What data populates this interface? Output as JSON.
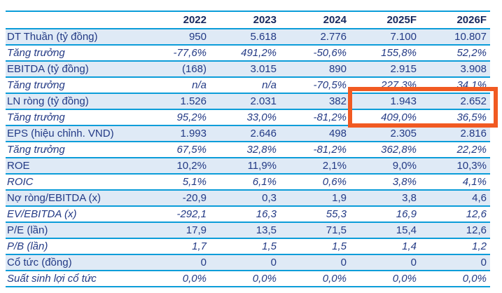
{
  "table": {
    "columns": [
      "",
      "2022",
      "2023",
      "2024",
      "2025F",
      "2026F"
    ],
    "rows": [
      {
        "label": "DT Thuần (tỷ đồng)",
        "style": "metric",
        "values": [
          "950",
          "5.618",
          "2.776",
          "7.100",
          "10.807"
        ]
      },
      {
        "label": "Tăng trưởng",
        "style": "growth",
        "values": [
          "-77,6%",
          "491,2%",
          "-50,6%",
          "155,8%",
          "52,2%"
        ]
      },
      {
        "label": "EBITDA (tỷ đồng)",
        "style": "metric",
        "values": [
          "(168)",
          "3.015",
          "890",
          "2.915",
          "3.908"
        ]
      },
      {
        "label": "Tăng trưởng",
        "style": "growth",
        "values": [
          "n/a",
          "n/a",
          "-70,5%",
          "227,3%",
          "34,1%"
        ]
      },
      {
        "label": "LN ròng (tỷ đồng)",
        "style": "metric",
        "values": [
          "1.526",
          "2.031",
          "382",
          "1.943",
          "2.652"
        ]
      },
      {
        "label": "Tăng trưởng",
        "style": "growth",
        "values": [
          "95,2%",
          "33,0%",
          "-81,2%",
          "409,0%",
          "36,5%"
        ]
      },
      {
        "label": "EPS (hiệu chỉnh. VND)",
        "style": "metric",
        "values": [
          "1.993",
          "2.646",
          "498",
          "2.305",
          "2.816"
        ]
      },
      {
        "label": "Tăng trưởng",
        "style": "growth",
        "values": [
          "67,5%",
          "32,8%",
          "-81,2%",
          "362,8%",
          "22,2%"
        ]
      },
      {
        "label": "ROE",
        "style": "metric",
        "values": [
          "10,2%",
          "11,9%",
          "2,1%",
          "9,0%",
          "10,3%"
        ]
      },
      {
        "label": "ROIC",
        "style": "growth",
        "values": [
          "5,1%",
          "6,1%",
          "0,6%",
          "3,8%",
          "4,1%"
        ]
      },
      {
        "label": "Nợ ròng/EBITDA (x)",
        "style": "metric",
        "values": [
          "-20,9",
          "0,3",
          "1,9",
          "3,8",
          "4,6"
        ]
      },
      {
        "label": "EV/EBITDA (x)",
        "style": "growth",
        "values": [
          "-292,1",
          "16,3",
          "55,3",
          "16,9",
          "12,6"
        ]
      },
      {
        "label": "P/E (lần)",
        "style": "metric",
        "values": [
          "17,9",
          "13,5",
          "71,5",
          "15,4",
          "12,6"
        ]
      },
      {
        "label": "P/B (lần)",
        "style": "growth",
        "values": [
          "1,7",
          "1,5",
          "1,5",
          "1,4",
          "1,2"
        ]
      },
      {
        "label": "Cổ tức (đồng)",
        "style": "metric",
        "values": [
          "0",
          "0",
          "0",
          "0",
          "0"
        ]
      },
      {
        "label": "Suất sinh lợi cổ tức",
        "style": "growth",
        "values": [
          "0,0%",
          "0,0%",
          "0,0%",
          "0,0%",
          "0,0%"
        ]
      }
    ]
  },
  "highlight": {
    "rows": [
      "LN ròng (tỷ đồng)",
      "Tăng trưởng"
    ],
    "columns": [
      "2025F",
      "2026F"
    ],
    "highlighted_values": [
      [
        "1.943",
        "2.652"
      ],
      [
        "409,0%",
        "36,5%"
      ]
    ],
    "color": "#f15a22"
  },
  "colors": {
    "row_separator": "#0c9dd9",
    "metric_row_bg": "#dfeaf6",
    "growth_row_bg": "#ffffff",
    "text_navy": "#233a85",
    "header_navy": "#17285e",
    "highlight_orange": "#f15a22"
  },
  "note": "ROIC row uses white background; growth-style rows with 'Tăng trưởng' label are italic"
}
